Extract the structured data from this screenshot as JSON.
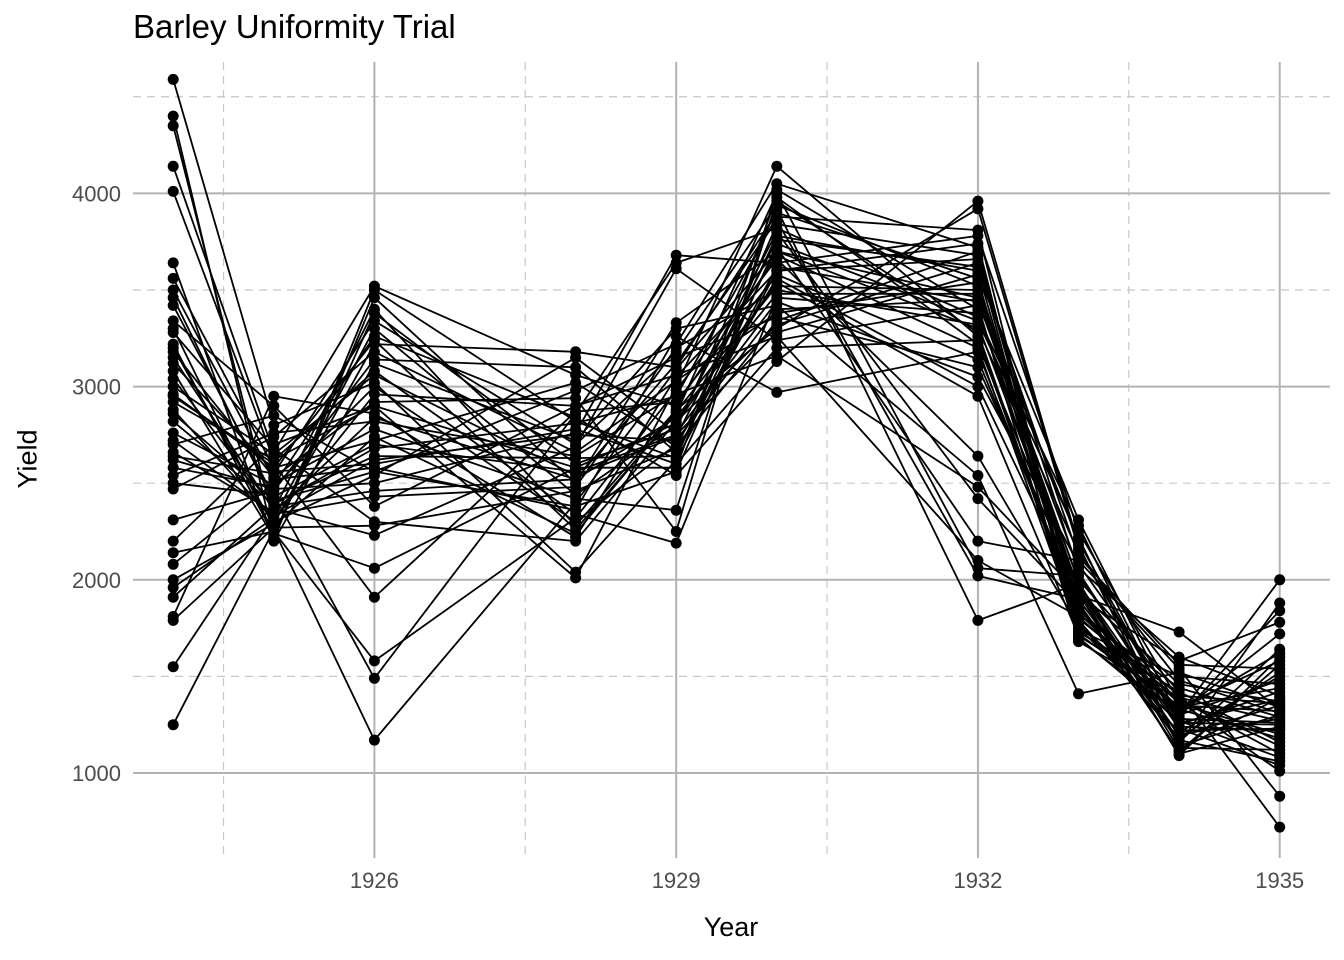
{
  "chart_data": {
    "type": "line",
    "title": "Barley Uniformity Trial",
    "xlabel": "Year",
    "ylabel": "Yield",
    "x": [
      1924,
      1925,
      1926,
      1928,
      1929,
      1930,
      1932,
      1933,
      1934,
      1935
    ],
    "x_ticks": [
      1926,
      1929,
      1932,
      1935
    ],
    "y_ticks": [
      1000,
      2000,
      3000,
      4000
    ],
    "xlim": [
      1923.6,
      1935.5
    ],
    "ylim": [
      560,
      4680
    ],
    "grid": true,
    "series_count": 48,
    "point_color": "#000000",
    "line_color": "#000000",
    "grid_major_color": "#b3b3b3",
    "grid_minor_color": "#c8c8c8"
  }
}
